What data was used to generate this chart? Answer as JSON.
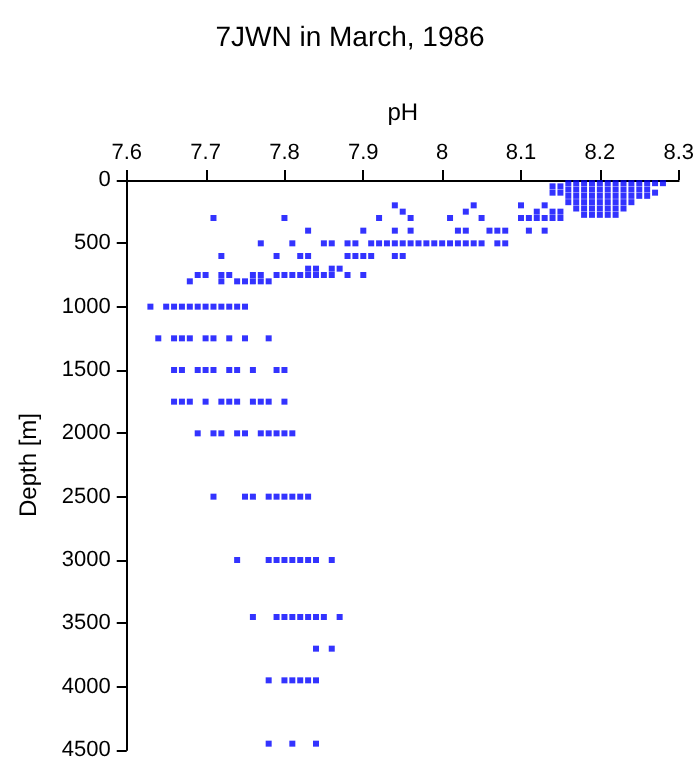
{
  "chart_data": {
    "type": "scatter",
    "title": "7JWN in March, 1986",
    "xlabel": "pH",
    "ylabel": "Depth [m]",
    "xlim": [
      7.6,
      8.3
    ],
    "xticks": [
      7.6,
      7.7,
      7.8,
      7.9,
      8,
      8.1,
      8.2,
      8.3
    ],
    "ylim": [
      4500,
      0
    ],
    "yticks": [
      0,
      500,
      1000,
      1500,
      2000,
      2500,
      3000,
      3500,
      4000,
      4500
    ],
    "grid": false,
    "marker": "square",
    "series": [
      {
        "color": "#0000ff",
        "x": [
          7.63,
          7.65,
          7.66,
          7.67,
          7.68,
          7.69,
          7.7,
          7.71,
          7.72,
          7.73,
          7.74,
          7.75,
          7.64,
          7.66,
          7.67,
          7.68,
          7.7,
          7.71,
          7.73,
          7.75,
          7.78,
          7.66,
          7.67,
          7.69,
          7.7,
          7.71,
          7.73,
          7.74,
          7.76,
          7.79,
          7.8,
          7.66,
          7.67,
          7.68,
          7.7,
          7.72,
          7.73,
          7.74,
          7.76,
          7.77,
          7.78,
          7.8,
          7.69,
          7.71,
          7.72,
          7.74,
          7.75,
          7.77,
          7.78,
          7.79,
          7.8,
          7.81,
          7.71,
          7.75,
          7.76,
          7.78,
          7.79,
          7.8,
          7.81,
          7.82,
          7.83,
          7.74,
          7.78,
          7.79,
          7.8,
          7.81,
          7.82,
          7.83,
          7.84,
          7.86,
          7.76,
          7.79,
          7.8,
          7.81,
          7.82,
          7.83,
          7.84,
          7.85,
          7.87,
          7.84,
          7.86,
          7.78,
          7.8,
          7.81,
          7.82,
          7.83,
          7.84,
          7.78,
          7.81,
          7.84,
          7.68,
          7.72,
          7.74,
          7.75,
          7.76,
          7.77,
          7.78,
          7.69,
          7.7,
          7.72,
          7.73,
          7.76,
          7.77,
          7.79,
          7.8,
          7.81,
          7.82,
          7.83,
          7.84,
          7.85,
          7.86,
          7.88,
          7.9,
          7.83,
          7.84,
          7.86,
          7.87,
          7.72,
          7.79,
          7.82,
          7.83,
          7.88,
          7.89,
          7.9,
          7.91,
          7.94,
          7.95,
          7.77,
          7.81,
          7.85,
          7.86,
          7.88,
          7.89,
          7.91,
          7.92,
          7.93,
          7.94,
          7.95,
          7.96,
          7.97,
          7.98,
          7.99,
          8.0,
          8.01,
          8.02,
          8.03,
          8.04,
          8.05,
          8.07,
          8.08,
          7.83,
          7.9,
          7.94,
          7.96,
          8.02,
          8.03,
          8.06,
          8.07,
          8.08,
          8.11,
          8.13,
          7.71,
          7.8,
          7.92,
          7.96,
          8.01,
          8.05,
          8.1,
          8.11,
          8.12,
          8.13,
          8.14,
          8.15,
          7.95,
          8.03,
          8.12,
          8.14,
          8.15,
          7.94,
          8.04,
          8.1,
          8.13,
          8.14,
          8.15,
          8.14,
          8.15,
          8.16,
          8.16,
          8.16,
          8.16,
          8.17,
          8.17,
          8.17,
          8.17,
          8.17,
          8.18,
          8.18,
          8.18,
          8.18,
          8.18,
          8.18,
          8.19,
          8.19,
          8.19,
          8.19,
          8.19,
          8.19,
          8.2,
          8.2,
          8.2,
          8.2,
          8.2,
          8.2,
          8.21,
          8.21,
          8.21,
          8.21,
          8.21,
          8.21,
          8.22,
          8.22,
          8.22,
          8.22,
          8.22,
          8.22,
          8.23,
          8.23,
          8.23,
          8.23,
          8.23,
          8.24,
          8.24,
          8.24,
          8.24,
          8.25,
          8.25,
          8.25,
          8.26,
          8.26,
          8.26,
          8.27,
          8.27,
          8.28
        ],
        "values": [
          1000,
          1000,
          1000,
          1000,
          1000,
          1000,
          1000,
          1000,
          1000,
          1000,
          1000,
          1000,
          1250,
          1250,
          1250,
          1250,
          1250,
          1250,
          1250,
          1250,
          1250,
          1500,
          1500,
          1500,
          1500,
          1500,
          1500,
          1500,
          1500,
          1500,
          1500,
          1750,
          1750,
          1750,
          1750,
          1750,
          1750,
          1750,
          1750,
          1750,
          1750,
          1750,
          2000,
          2000,
          2000,
          2000,
          2000,
          2000,
          2000,
          2000,
          2000,
          2000,
          2500,
          2500,
          2500,
          2500,
          2500,
          2500,
          2500,
          2500,
          2500,
          3000,
          3000,
          3000,
          3000,
          3000,
          3000,
          3000,
          3000,
          3000,
          3450,
          3450,
          3450,
          3450,
          3450,
          3450,
          3450,
          3450,
          3450,
          3700,
          3700,
          3950,
          3950,
          3950,
          3950,
          3950,
          3950,
          4450,
          4450,
          4450,
          800,
          800,
          800,
          800,
          800,
          800,
          800,
          750,
          750,
          750,
          750,
          750,
          750,
          750,
          750,
          750,
          750,
          750,
          750,
          750,
          750,
          750,
          750,
          700,
          700,
          700,
          700,
          600,
          600,
          600,
          600,
          600,
          600,
          600,
          600,
          600,
          600,
          500,
          500,
          500,
          500,
          500,
          500,
          500,
          500,
          500,
          500,
          500,
          500,
          500,
          500,
          500,
          500,
          500,
          500,
          500,
          500,
          500,
          500,
          500,
          400,
          400,
          400,
          400,
          400,
          400,
          400,
          400,
          400,
          400,
          400,
          300,
          300,
          300,
          300,
          300,
          300,
          300,
          300,
          300,
          300,
          300,
          300,
          250,
          250,
          250,
          250,
          250,
          200,
          200,
          200,
          200,
          50,
          50,
          100,
          100,
          25,
          75,
          125,
          175,
          25,
          75,
          125,
          175,
          225,
          25,
          75,
          125,
          175,
          225,
          275,
          25,
          75,
          125,
          175,
          225,
          275,
          25,
          75,
          125,
          175,
          225,
          275,
          25,
          75,
          125,
          175,
          225,
          275,
          25,
          75,
          125,
          175,
          225,
          275,
          25,
          75,
          125,
          175,
          225,
          25,
          75,
          125,
          175,
          25,
          75,
          125,
          25,
          75,
          125,
          25,
          100,
          25
        ]
      }
    ]
  }
}
